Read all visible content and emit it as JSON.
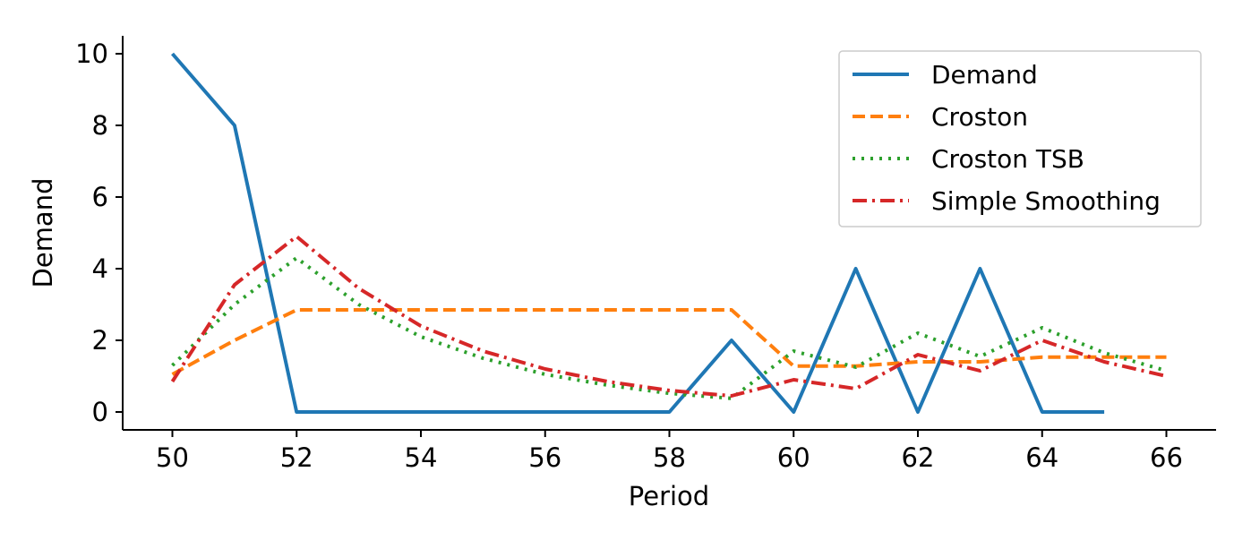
{
  "chart_data": {
    "type": "line",
    "title": "",
    "xlabel": "Period",
    "ylabel": "Demand",
    "xlim": [
      49.2,
      66.8
    ],
    "ylim": [
      -0.5,
      10.5
    ],
    "x_ticks": [
      50,
      52,
      54,
      56,
      58,
      60,
      62,
      64,
      66
    ],
    "y_ticks": [
      0,
      2,
      4,
      6,
      8,
      10
    ],
    "grid": false,
    "legend_position": "top-right",
    "series": [
      {
        "name": "Demand",
        "color": "#1f77b4",
        "style": "solid",
        "x": [
          50,
          51,
          52,
          53,
          54,
          55,
          56,
          57,
          58,
          59,
          60,
          61,
          62,
          63,
          64,
          65
        ],
        "values": [
          10,
          8,
          0,
          0,
          0,
          0,
          0,
          0,
          0,
          2,
          0,
          4,
          0,
          4,
          0,
          0
        ]
      },
      {
        "name": "Croston",
        "color": "#ff7f0e",
        "style": "dashed",
        "x": [
          50,
          51,
          52,
          53,
          54,
          55,
          56,
          57,
          58,
          59,
          60,
          61,
          62,
          63,
          64,
          65,
          66
        ],
        "values": [
          1.05,
          2.0,
          2.85,
          2.85,
          2.85,
          2.85,
          2.85,
          2.85,
          2.85,
          2.85,
          1.28,
          1.28,
          1.4,
          1.4,
          1.53,
          1.53,
          1.53
        ]
      },
      {
        "name": "Croston TSB",
        "color": "#2ca02c",
        "style": "dotted",
        "x": [
          50,
          51,
          52,
          53,
          54,
          55,
          56,
          57,
          58,
          59,
          60,
          61,
          62,
          63,
          64,
          65,
          66
        ],
        "values": [
          1.3,
          3.0,
          4.3,
          3.0,
          2.1,
          1.5,
          1.05,
          0.75,
          0.52,
          0.38,
          1.7,
          1.25,
          2.2,
          1.55,
          2.35,
          1.65,
          1.15
        ]
      },
      {
        "name": "Simple Smoothing",
        "color": "#d62728",
        "style": "dashdot",
        "x": [
          50,
          51,
          52,
          53,
          54,
          55,
          56,
          57,
          58,
          59,
          60,
          61,
          62,
          63,
          64,
          65,
          66
        ],
        "values": [
          0.85,
          3.55,
          4.9,
          3.45,
          2.4,
          1.7,
          1.2,
          0.85,
          0.6,
          0.45,
          0.9,
          0.65,
          1.6,
          1.15,
          2.0,
          1.4,
          1.0
        ]
      }
    ]
  }
}
